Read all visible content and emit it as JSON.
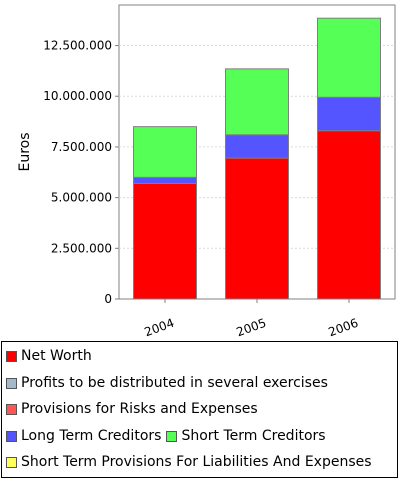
{
  "chart_data": {
    "type": "bar",
    "stacked": true,
    "categories": [
      "2004",
      "2005",
      "2006"
    ],
    "ylabel": "Euros",
    "xlabel": "",
    "ylim": [
      0,
      14500000
    ],
    "yticks": [
      0,
      2500000,
      5000000,
      7500000,
      10000000,
      12500000
    ],
    "ytick_labels": [
      "0",
      "2.500.000",
      "5.000.000",
      "7.500.000",
      "10.000.000",
      "12.500.000"
    ],
    "grid": true,
    "legend_position": "bottom",
    "series": [
      {
        "name": "Net Worth",
        "color": "#ff0000",
        "values": [
          5700000,
          6950000,
          8300000
        ]
      },
      {
        "name": "Profits to be distributed in several exercises",
        "color": "#a3b8cc",
        "values": [
          0,
          0,
          0
        ]
      },
      {
        "name": "Provisions for Risks and Expenses",
        "color": "#ff5555",
        "values": [
          0,
          0,
          0
        ]
      },
      {
        "name": "Long Term Creditors",
        "color": "#5555ff",
        "values": [
          300000,
          1150000,
          1650000
        ]
      },
      {
        "name": "Short Term Creditors",
        "color": "#55ff55",
        "values": [
          2500000,
          3250000,
          3900000
        ]
      },
      {
        "name": "Short Term Provisions For Liabilities And Expenses",
        "color": "#ffff55",
        "values": [
          0,
          0,
          0
        ]
      }
    ]
  }
}
